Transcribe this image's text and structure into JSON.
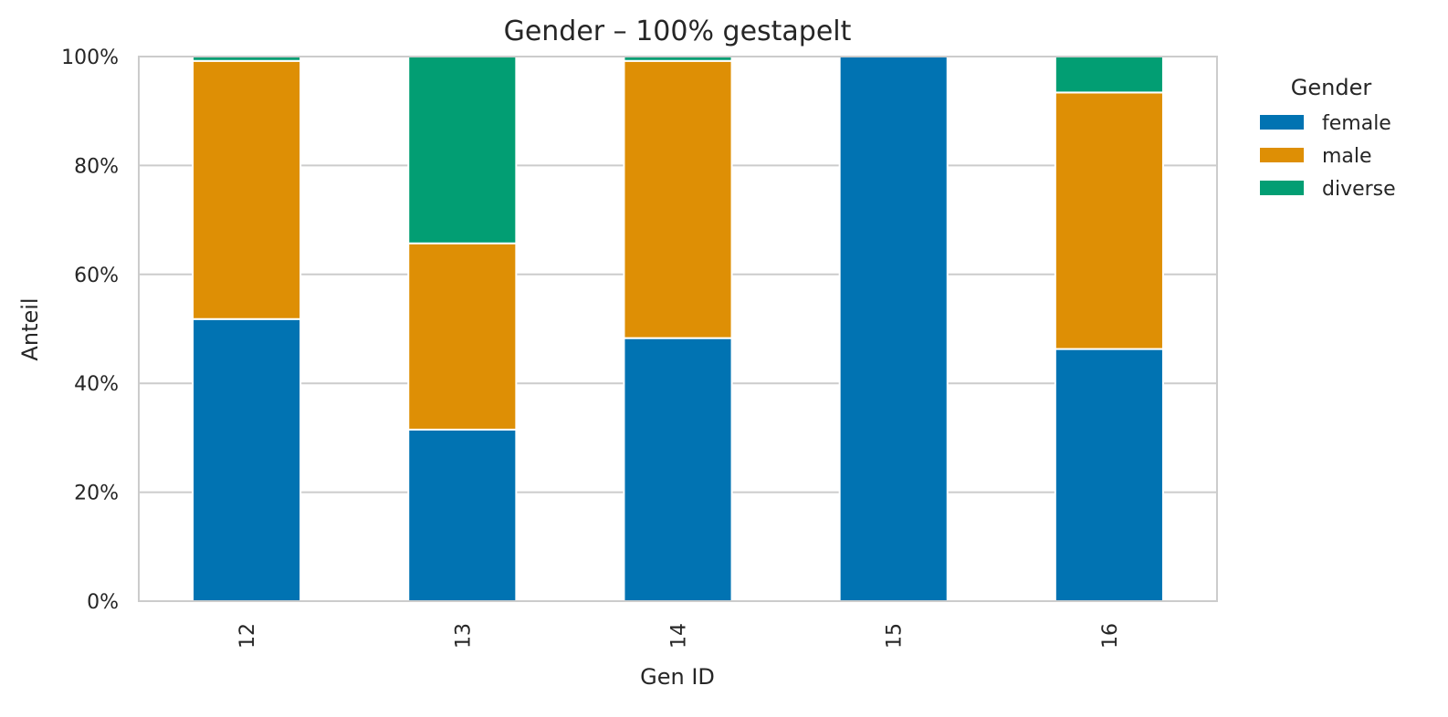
{
  "chart_data": {
    "type": "bar",
    "stacked": true,
    "normalized": "100%",
    "title": "Gender – 100% gestapelt",
    "xlabel": "Gen ID",
    "ylabel": "Anteil",
    "categories": [
      "12",
      "13",
      "14",
      "15",
      "16"
    ],
    "ylim": [
      0,
      100
    ],
    "yticks": [
      "0%",
      "20%",
      "40%",
      "60%",
      "80%",
      "100%"
    ],
    "grid": true,
    "legend": {
      "title": "Gender",
      "position": "right-outside"
    },
    "series": [
      {
        "name": "female",
        "color": "#0173B2",
        "values": [
          51.8,
          31.5,
          48.3,
          100,
          46.3
        ]
      },
      {
        "name": "male",
        "color": "#DE8F05",
        "values": [
          47.4,
          34.2,
          50.9,
          0,
          47.1
        ]
      },
      {
        "name": "diverse",
        "color": "#029E73",
        "values": [
          0.8,
          34.3,
          0.8,
          0,
          6.6
        ]
      }
    ]
  }
}
